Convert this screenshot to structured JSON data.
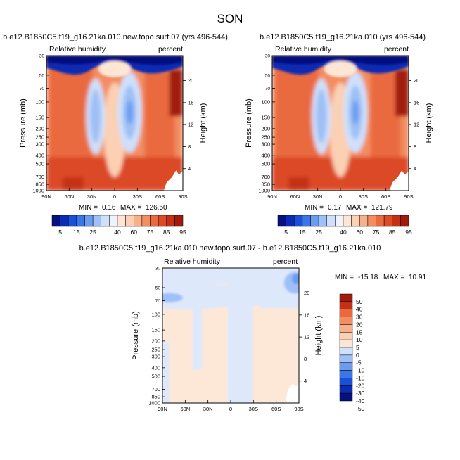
{
  "figure": {
    "title": "SON"
  },
  "colors": {
    "blues": [
      "#06107e",
      "#0a2bb3",
      "#1a4fd8",
      "#3a76e8",
      "#6c9cf0",
      "#9fc0f6",
      "#cfe0fb",
      "#eef3fd"
    ],
    "reds": [
      "#fde6d6",
      "#fbd0b3",
      "#f8b08a",
      "#f38d62",
      "#ea6a40",
      "#dc4a26",
      "#c43016",
      "#a11a0c",
      "#760a05"
    ],
    "diff": [
      "#06107e",
      "#0a2bb3",
      "#1a4fd8",
      "#3a76e8",
      "#6c9cf0",
      "#9fc0f6",
      "#cfe0fb",
      "#fde6d6",
      "#fbd0b3",
      "#f8b08a",
      "#f38d62",
      "#ea6a40",
      "#c43016",
      "#a11a0c"
    ]
  },
  "chart_data": [
    {
      "type": "heatmap",
      "title": "b.e12.B1850C5.f19_g16.21ka.010.new.topo.surf.07 (yrs 496-544)",
      "left_label": "Relative humidity",
      "right_label": "percent",
      "xlabel": "",
      "ylabel": "Pressure (mb)",
      "y2label": "Height (km)",
      "x_ticks": [
        "90N",
        "60N",
        "30N",
        "0",
        "30S",
        "60S",
        "90S"
      ],
      "x_range": [
        90,
        -90
      ],
      "y_ticks": [
        "30",
        "50",
        "70",
        "100",
        "150",
        "200",
        "250",
        "300",
        "400",
        "500",
        "700",
        "850",
        "1000"
      ],
      "y_range_mb": [
        30,
        1000
      ],
      "height_ticks_km": [
        "20",
        "16",
        "12",
        "8",
        "4"
      ],
      "min_label": "MIN =",
      "min_value": "0.16",
      "max_label": "MAX =",
      "max_value": "126.50",
      "colorbar_levels": [
        "5",
        "10",
        "15",
        "20",
        "25",
        "30",
        "35",
        "40",
        "50",
        "60",
        "70",
        "75",
        "80",
        "85",
        "90",
        "95"
      ],
      "colorbar_labels": [
        "5",
        "15",
        "25",
        "40",
        "60",
        "75",
        "85",
        "95"
      ]
    },
    {
      "type": "heatmap",
      "title": "b.e12.B1850C5.f19_g16.21ka.010 (yrs 496-544)",
      "left_label": "Relative humidity",
      "right_label": "percent",
      "xlabel": "",
      "ylabel": "Pressure (mb)",
      "y2label": "Height (km)",
      "x_ticks": [
        "90N",
        "60N",
        "30N",
        "0",
        "30S",
        "60S",
        "90S"
      ],
      "x_range": [
        90,
        -90
      ],
      "y_ticks": [
        "30",
        "50",
        "70",
        "100",
        "150",
        "200",
        "250",
        "300",
        "400",
        "500",
        "700",
        "850",
        "1000"
      ],
      "y_range_mb": [
        30,
        1000
      ],
      "height_ticks_km": [
        "20",
        "16",
        "12",
        "8",
        "4"
      ],
      "min_label": "MIN =",
      "min_value": "0.17",
      "max_label": "MAX =",
      "max_value": "121.79",
      "colorbar_levels": [
        "5",
        "10",
        "15",
        "20",
        "25",
        "30",
        "35",
        "40",
        "50",
        "60",
        "70",
        "75",
        "80",
        "85",
        "90",
        "95"
      ],
      "colorbar_labels": [
        "5",
        "15",
        "25",
        "40",
        "60",
        "75",
        "85",
        "95"
      ]
    },
    {
      "type": "heatmap",
      "title": "b.e12.B1850C5.f19_g16.21ka.010.new.topo.surf.07 - b.e12.B1850C5.f19_g16.21ka.010",
      "left_label": "Relative humidity",
      "right_label": "percent",
      "xlabel": "",
      "ylabel": "Pressure (mb)",
      "y2label": "Height (km)",
      "x_ticks": [
        "90N",
        "60N",
        "30N",
        "0",
        "30S",
        "60S",
        "90S"
      ],
      "x_range": [
        90,
        -90
      ],
      "y_ticks": [
        "30",
        "50",
        "70",
        "100",
        "150",
        "200",
        "250",
        "300",
        "400",
        "500",
        "700",
        "850",
        "1000"
      ],
      "y_range_mb": [
        30,
        1000
      ],
      "height_ticks_km": [
        "20",
        "16",
        "12",
        "8",
        "4"
      ],
      "min_label": "MIN =",
      "min_value": "-15.18",
      "max_label": "MAX =",
      "max_value": "10.91",
      "colorbar_levels": [
        "50",
        "40",
        "30",
        "20",
        "15",
        "10",
        "5",
        "0",
        "-5",
        "-10",
        "-15",
        "-20",
        "-30",
        "-40",
        "-50"
      ]
    }
  ]
}
